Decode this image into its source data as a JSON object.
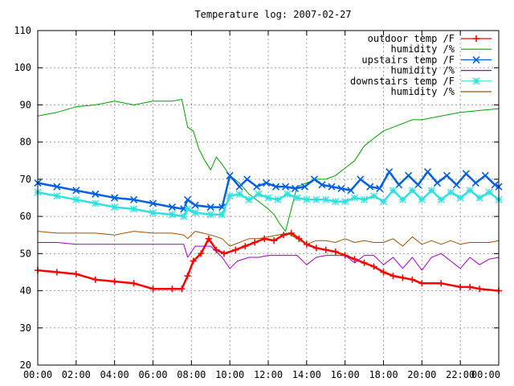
{
  "chart_data": {
    "type": "line",
    "title": "Temperature log: 2007-02-27",
    "xlabel": "",
    "ylabel": "",
    "xlim": [
      0,
      24
    ],
    "ylim": [
      20,
      110
    ],
    "grid": true,
    "legend_position": "top-right",
    "x_tick_labels": [
      "00:00",
      "02:00",
      "04:00",
      "06:00",
      "08:00",
      "10:00",
      "12:00",
      "14:00",
      "16:00",
      "18:00",
      "20:00",
      "22:00",
      "00:00"
    ],
    "y_tick_labels": [
      "20",
      "30",
      "40",
      "50",
      "60",
      "70",
      "80",
      "90",
      "100",
      "110"
    ],
    "y_ticks": [
      20,
      30,
      40,
      50,
      60,
      70,
      80,
      90,
      100,
      110
    ],
    "series": [
      {
        "name": "outdoor temp /F",
        "color": "#ff0000",
        "marker": "plus",
        "points": [
          [
            0,
            45.5
          ],
          [
            1,
            45
          ],
          [
            2,
            44.5
          ],
          [
            3,
            43
          ],
          [
            4,
            42.5
          ],
          [
            5,
            42
          ],
          [
            6,
            40.5
          ],
          [
            7,
            40.5
          ],
          [
            7.5,
            40.5
          ],
          [
            7.8,
            44
          ],
          [
            8.1,
            48
          ],
          [
            8.5,
            50
          ],
          [
            8.9,
            54
          ],
          [
            9.3,
            51
          ],
          [
            9.7,
            50
          ],
          [
            10.3,
            51
          ],
          [
            10.8,
            52
          ],
          [
            11.3,
            53
          ],
          [
            11.8,
            54
          ],
          [
            12.3,
            53.5
          ],
          [
            12.8,
            55
          ],
          [
            13.2,
            55.5
          ],
          [
            13.6,
            54
          ],
          [
            14.0,
            52.5
          ],
          [
            14.5,
            51.5
          ],
          [
            15,
            51
          ],
          [
            15.5,
            50.5
          ],
          [
            16,
            49.5
          ],
          [
            16.5,
            48.5
          ],
          [
            17,
            47.5
          ],
          [
            17.5,
            46.5
          ],
          [
            18,
            45
          ],
          [
            18.5,
            44
          ],
          [
            19,
            43.5
          ],
          [
            19.5,
            43
          ],
          [
            20,
            42
          ],
          [
            21,
            42
          ],
          [
            22,
            41
          ],
          [
            22.5,
            41
          ],
          [
            23,
            40.5
          ],
          [
            24,
            40
          ]
        ]
      },
      {
        "name": "humidity /%",
        "color": "#00a000",
        "marker": "none",
        "points": [
          [
            0,
            87
          ],
          [
            1,
            88
          ],
          [
            2,
            89.5
          ],
          [
            3,
            90
          ],
          [
            4,
            91
          ],
          [
            5,
            90
          ],
          [
            6,
            91
          ],
          [
            7,
            91
          ],
          [
            7.5,
            91.5
          ],
          [
            7.8,
            84
          ],
          [
            8.1,
            83
          ],
          [
            8.4,
            78
          ],
          [
            8.7,
            75
          ],
          [
            9.0,
            72.5
          ],
          [
            9.3,
            76
          ],
          [
            9.6,
            74
          ],
          [
            10,
            71
          ],
          [
            10.5,
            69
          ],
          [
            11,
            66
          ],
          [
            11.5,
            64
          ],
          [
            12,
            62
          ],
          [
            12.3,
            60.5
          ],
          [
            12.6,
            58
          ],
          [
            12.9,
            56
          ],
          [
            13.2,
            62
          ],
          [
            13.5,
            68
          ],
          [
            14,
            69
          ],
          [
            14.5,
            70
          ],
          [
            15,
            70
          ],
          [
            15.5,
            71
          ],
          [
            16,
            73
          ],
          [
            16.5,
            75
          ],
          [
            17,
            79
          ],
          [
            17.5,
            81
          ],
          [
            18,
            83
          ],
          [
            18.5,
            84
          ],
          [
            19,
            85
          ],
          [
            19.5,
            86
          ],
          [
            20,
            86
          ],
          [
            21,
            87
          ],
          [
            22,
            88
          ],
          [
            23,
            88.5
          ],
          [
            24,
            89
          ]
        ]
      },
      {
        "name": "upstairs temp /F",
        "color": "#0060e0",
        "marker": "x",
        "points": [
          [
            0,
            69
          ],
          [
            1,
            68
          ],
          [
            2,
            67
          ],
          [
            3,
            66
          ],
          [
            4,
            65
          ],
          [
            5,
            64.5
          ],
          [
            6,
            63.5
          ],
          [
            7,
            62.5
          ],
          [
            7.6,
            62
          ],
          [
            7.8,
            64.5
          ],
          [
            8.2,
            63
          ],
          [
            9,
            62.5
          ],
          [
            9.6,
            62.5
          ],
          [
            10,
            71
          ],
          [
            10.5,
            68
          ],
          [
            10.9,
            70
          ],
          [
            11.4,
            68
          ],
          [
            11.9,
            69
          ],
          [
            12.4,
            68
          ],
          [
            12.9,
            68
          ],
          [
            13.4,
            67.5
          ],
          [
            13.9,
            68
          ],
          [
            14.4,
            70
          ],
          [
            14.8,
            68.5
          ],
          [
            15.3,
            68
          ],
          [
            15.8,
            67.5
          ],
          [
            16.3,
            67
          ],
          [
            16.8,
            70
          ],
          [
            17.3,
            68
          ],
          [
            17.8,
            67.5
          ],
          [
            18.3,
            72
          ],
          [
            18.8,
            68.5
          ],
          [
            19.3,
            71
          ],
          [
            19.8,
            68.5
          ],
          [
            20.3,
            72
          ],
          [
            20.8,
            69
          ],
          [
            21.3,
            71
          ],
          [
            21.8,
            68.5
          ],
          [
            22.3,
            71.5
          ],
          [
            22.8,
            69
          ],
          [
            23.3,
            71
          ],
          [
            23.8,
            68.5
          ],
          [
            24,
            68
          ]
        ]
      },
      {
        "name": "humidity /%",
        "color": "#a000c0",
        "marker": "none",
        "points": [
          [
            0,
            53
          ],
          [
            1,
            53
          ],
          [
            2,
            52.5
          ],
          [
            3,
            52.5
          ],
          [
            4,
            52.5
          ],
          [
            5,
            52.5
          ],
          [
            6,
            52.5
          ],
          [
            7,
            52.5
          ],
          [
            7.6,
            52.5
          ],
          [
            7.8,
            49
          ],
          [
            8.2,
            52
          ],
          [
            9,
            52
          ],
          [
            9.6,
            49
          ],
          [
            10.0,
            46
          ],
          [
            10.4,
            48
          ],
          [
            11,
            49
          ],
          [
            11.5,
            49
          ],
          [
            12,
            49.5
          ],
          [
            12.5,
            49.5
          ],
          [
            13,
            49.5
          ],
          [
            13.5,
            49.5
          ],
          [
            14,
            47
          ],
          [
            14.5,
            49
          ],
          [
            15,
            49.5
          ],
          [
            15.5,
            49.5
          ],
          [
            16,
            49.5
          ],
          [
            16.5,
            47.5
          ],
          [
            17,
            49.5
          ],
          [
            17.5,
            49.5
          ],
          [
            18,
            47
          ],
          [
            18.5,
            49
          ],
          [
            19,
            46
          ],
          [
            19.5,
            49
          ],
          [
            20,
            45.5
          ],
          [
            20.5,
            49
          ],
          [
            21,
            50
          ],
          [
            21.5,
            48
          ],
          [
            22,
            46
          ],
          [
            22.5,
            49
          ],
          [
            23,
            47
          ],
          [
            23.5,
            48.5
          ],
          [
            24,
            49
          ]
        ]
      },
      {
        "name": "downstairs temp /F",
        "color": "#30e0e0",
        "marker": "star",
        "points": [
          [
            0,
            66.5
          ],
          [
            1,
            65.5
          ],
          [
            2,
            64.5
          ],
          [
            3,
            63.5
          ],
          [
            4,
            62.5
          ],
          [
            5,
            62
          ],
          [
            6,
            61
          ],
          [
            7,
            60.5
          ],
          [
            7.6,
            60
          ],
          [
            7.8,
            62
          ],
          [
            8.2,
            61
          ],
          [
            9,
            60.5
          ],
          [
            9.6,
            60.5
          ],
          [
            10,
            65.5
          ],
          [
            10.5,
            66
          ],
          [
            11,
            64.5
          ],
          [
            11.5,
            66
          ],
          [
            12,
            65
          ],
          [
            12.5,
            64.5
          ],
          [
            13,
            66
          ],
          [
            13.5,
            65
          ],
          [
            14,
            64.5
          ],
          [
            14.5,
            64.5
          ],
          [
            15,
            64.5
          ],
          [
            15.5,
            64
          ],
          [
            16,
            64
          ],
          [
            16.5,
            65
          ],
          [
            17,
            64.5
          ],
          [
            17.5,
            65.5
          ],
          [
            18,
            64
          ],
          [
            18.5,
            67
          ],
          [
            19,
            64.5
          ],
          [
            19.5,
            67
          ],
          [
            20,
            64.5
          ],
          [
            20.5,
            67
          ],
          [
            21,
            64.5
          ],
          [
            21.5,
            66.5
          ],
          [
            22,
            65
          ],
          [
            22.5,
            67
          ],
          [
            23,
            65
          ],
          [
            23.5,
            66.5
          ],
          [
            24,
            64.5
          ]
        ]
      },
      {
        "name": "humidity /%",
        "color": "#a05000",
        "marker": "none",
        "points": [
          [
            0,
            56
          ],
          [
            1,
            55.5
          ],
          [
            2,
            55.5
          ],
          [
            3,
            55.5
          ],
          [
            4,
            55
          ],
          [
            5,
            56
          ],
          [
            6,
            55.5
          ],
          [
            7,
            55.5
          ],
          [
            7.6,
            55
          ],
          [
            7.8,
            54
          ],
          [
            8.2,
            56
          ],
          [
            9,
            55
          ],
          [
            9.6,
            54
          ],
          [
            10.0,
            52
          ],
          [
            10.5,
            53
          ],
          [
            11,
            54
          ],
          [
            11.5,
            54
          ],
          [
            12,
            54.5
          ],
          [
            12.5,
            55
          ],
          [
            13,
            55.5
          ],
          [
            13.5,
            54
          ],
          [
            14,
            52.5
          ],
          [
            14.5,
            53.5
          ],
          [
            15,
            53.5
          ],
          [
            15.5,
            53
          ],
          [
            16,
            54
          ],
          [
            16.5,
            53
          ],
          [
            17,
            53.5
          ],
          [
            17.5,
            53
          ],
          [
            18,
            53
          ],
          [
            18.5,
            54
          ],
          [
            19,
            52
          ],
          [
            19.5,
            54.5
          ],
          [
            20,
            52.5
          ],
          [
            20.5,
            53.5
          ],
          [
            21,
            52.5
          ],
          [
            21.5,
            53.5
          ],
          [
            22,
            52.5
          ],
          [
            22.5,
            53
          ],
          [
            23,
            53
          ],
          [
            23.5,
            53
          ],
          [
            24,
            53.5
          ]
        ]
      }
    ]
  }
}
